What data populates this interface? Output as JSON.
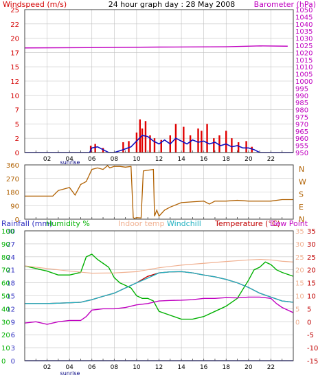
{
  "title": "24 hour graph day : 28 May 2008",
  "colors": {
    "wind": "#d40000",
    "gust": "#e00000",
    "windavg": "#1010c0",
    "baro": "#c000c0",
    "dir": "#b06000",
    "humidity": "#00b000",
    "indoor": "#f0b090",
    "windchill": "#20b0c0",
    "temperature": "#c00000",
    "dewpoint": "#c000c0",
    "rainfall": "#3030c0",
    "frame": "#404040",
    "grid": "#c0c0c0"
  },
  "chart_data": [
    {
      "type": "bar",
      "title": "24 hour graph day : 28 May 2008",
      "left_axis_label": "Windspeed (m/s)",
      "right_axis_label": "Barometer (hPa)",
      "y_left_ticks": [
        "0",
        "2",
        "5",
        "7",
        "10",
        "12",
        "15",
        "17",
        "20",
        "22",
        "25"
      ],
      "y_left_range": [
        0,
        25
      ],
      "y_right_ticks": [
        "950",
        "955",
        "960",
        "965",
        "970",
        "975",
        "980",
        "985",
        "990",
        "995",
        "1000",
        "1005",
        "1010",
        "1015",
        "1020",
        "1025",
        "1030",
        "1035",
        "1040",
        "1045",
        "1050"
      ],
      "y_right_range": [
        950,
        1050
      ],
      "x_ticks": [
        "02",
        "04",
        "06",
        "08",
        "10",
        "12",
        "14",
        "16",
        "18",
        "20",
        "22"
      ],
      "x_annotation": "sunrise",
      "x_range": [
        0,
        24
      ],
      "series": [
        {
          "name": "Barometer",
          "x": [
            0,
            6,
            12,
            18,
            21,
            23.5
          ],
          "values": [
            1023.2,
            1023.4,
            1023.8,
            1024.0,
            1024.6,
            1024.4
          ]
        },
        {
          "name": "Wind gust",
          "x": [
            5.9,
            6.3,
            7.0,
            8.8,
            9.3,
            10.0,
            10.3,
            10.5,
            10.8,
            11.2,
            11.6,
            12.2,
            13.0,
            13.5,
            14.2,
            14.8,
            15.5,
            15.8,
            16.3,
            16.9,
            17.4,
            18.0,
            18.5,
            19.1,
            19.8,
            20.3
          ],
          "values": [
            1.2,
            1.5,
            0.8,
            1.8,
            2.0,
            3.5,
            5.8,
            4.2,
            5.5,
            3.0,
            2.5,
            2.2,
            3.0,
            5.0,
            4.5,
            3.0,
            4.2,
            3.8,
            5.0,
            2.5,
            3.0,
            3.8,
            2.5,
            1.8,
            2.0,
            1.0
          ]
        },
        {
          "name": "Wind average",
          "x": [
            0,
            5.8,
            6.0,
            6.5,
            7.0,
            7.5,
            8.0,
            8.8,
            9.5,
            10.0,
            10.5,
            11.0,
            11.5,
            12.0,
            12.5,
            13.0,
            13.5,
            14.0,
            14.5,
            15.0,
            15.5,
            16.0,
            16.5,
            17.0,
            17.5,
            18.0,
            18.5,
            19.0,
            19.5,
            20.0,
            20.5,
            21.0,
            24.0
          ],
          "values": [
            0,
            0,
            0.8,
            1.0,
            0.5,
            0,
            0,
            0.5,
            1.0,
            2.0,
            3.0,
            2.8,
            2.0,
            1.5,
            2.2,
            1.5,
            2.5,
            2.0,
            1.5,
            2.2,
            1.8,
            2.0,
            1.5,
            1.8,
            1.2,
            1.5,
            1.0,
            1.2,
            0.8,
            0.8,
            0.5,
            0,
            0
          ]
        }
      ]
    },
    {
      "type": "line",
      "y_left_ticks": [
        "0",
        "90",
        "180",
        "270",
        "360"
      ],
      "y_left_range": [
        0,
        360
      ],
      "y_right_ticks": [
        "N",
        "W",
        "S",
        "E",
        "N"
      ],
      "x_range": [
        0,
        24
      ],
      "series": [
        {
          "name": "Wind direction",
          "x": [
            0,
            2.5,
            3.0,
            3.5,
            4.0,
            4.5,
            5.0,
            5.5,
            6.0,
            6.5,
            7.0,
            7.4,
            7.6,
            8.0,
            8.5,
            9.0,
            9.5,
            9.7,
            9.8,
            10.0,
            10.4,
            10.6,
            11.5,
            11.6,
            11.8,
            12.0,
            12.5,
            13.0,
            14.0,
            15.0,
            16.0,
            16.5,
            17.0,
            18.0,
            19.0,
            20.0,
            21.0,
            22.0,
            23.0,
            24.0
          ],
          "values": [
            153,
            153,
            190,
            200,
            210,
            160,
            230,
            250,
            330,
            340,
            330,
            355,
            340,
            350,
            350,
            345,
            350,
            10,
            5,
            10,
            8,
            320,
            330,
            20,
            60,
            20,
            60,
            80,
            110,
            115,
            120,
            100,
            120,
            120,
            125,
            120,
            120,
            120,
            130,
            130
          ]
        }
      ]
    },
    {
      "type": "line",
      "legend": [
        "Rainfall (mm)",
        "Humidity %",
        "Indoor temp",
        "Windchill",
        "Temperature (°C)",
        "Dew Point"
      ],
      "y_rain_ticks": [
        "0",
        "3",
        "6",
        "9",
        "12",
        "15",
        "18",
        "21",
        "24",
        "27",
        "30"
      ],
      "y_humidity_ticks": [
        "0",
        "10",
        "20",
        "30",
        "40",
        "50",
        "60",
        "70",
        "80",
        "90",
        "100"
      ],
      "y_temp_left_ticks": [
        "0",
        "5",
        "10",
        "15",
        "20",
        "25",
        "30",
        "35"
      ],
      "y_temp_right_ticks": [
        "-15",
        "-10",
        "-5",
        "0",
        "5",
        "10",
        "15",
        "20",
        "25",
        "30",
        "35"
      ],
      "y_temp_range": [
        -15,
        35
      ],
      "x_ticks": [
        "02",
        "04",
        "06",
        "08",
        "10",
        "12",
        "14",
        "16",
        "18",
        "20",
        "22"
      ],
      "x_annotation": "sunrise",
      "x_range": [
        0,
        24
      ],
      "series": [
        {
          "name": "Humidity %",
          "axis": "humidity",
          "x": [
            0,
            1,
            2,
            3,
            4,
            5,
            5.5,
            6,
            6.5,
            7,
            7.5,
            8,
            8.5,
            9,
            9.5,
            10,
            10.5,
            11,
            11.5,
            12,
            13,
            14,
            15,
            16,
            17,
            18,
            19,
            20,
            20.5,
            21,
            21.5,
            22,
            22.5,
            23,
            24
          ],
          "values": [
            73,
            71,
            69,
            66,
            66,
            68,
            80,
            82,
            78,
            75,
            72,
            64,
            60,
            58,
            56,
            50,
            48,
            48,
            46,
            38,
            35,
            32,
            32,
            34,
            38,
            42,
            48,
            62,
            70,
            72,
            76,
            74,
            70,
            68,
            65
          ]
        },
        {
          "name": "Indoor temp",
          "axis": "temp",
          "x": [
            0,
            2,
            4,
            6,
            8,
            10,
            12,
            14,
            16,
            18,
            20,
            21,
            22,
            23,
            24
          ],
          "values": [
            21.5,
            20.5,
            19.5,
            18.7,
            18.8,
            19.3,
            20.8,
            21.8,
            22.5,
            23.2,
            23.8,
            24.0,
            23.8,
            23.3,
            23.0
          ]
        },
        {
          "name": "Temperature (°C)",
          "axis": "temp",
          "x": [
            0,
            2,
            4,
            5,
            6,
            7,
            8,
            9,
            10,
            11,
            12,
            13,
            14,
            15,
            16,
            17,
            18,
            19,
            20,
            21,
            22,
            23,
            24
          ],
          "values": [
            7.0,
            7.0,
            7.3,
            7.5,
            8.5,
            9.8,
            11.0,
            13.0,
            15.0,
            17.5,
            18.8,
            19.2,
            19.3,
            18.8,
            18.0,
            17.3,
            16.3,
            15.0,
            13.2,
            11.0,
            9.5,
            8.0,
            7.5
          ]
        },
        {
          "name": "Windchill",
          "axis": "temp",
          "x": [
            0,
            2,
            4,
            5,
            6,
            7,
            8,
            9,
            10,
            11,
            12,
            13,
            14,
            15,
            16,
            17,
            18,
            19,
            20,
            21,
            22,
            23,
            24
          ],
          "values": [
            7.0,
            7.0,
            7.3,
            7.5,
            8.5,
            9.8,
            11.0,
            13.0,
            15.0,
            16.8,
            18.8,
            19.2,
            19.3,
            18.8,
            18.0,
            17.3,
            16.3,
            15.0,
            13.2,
            11.0,
            9.5,
            8.0,
            7.5
          ]
        },
        {
          "name": "Dew Point",
          "axis": "temp",
          "x": [
            0,
            1,
            2,
            3,
            4,
            5,
            5.5,
            6,
            7,
            8,
            9,
            10,
            11,
            12,
            13,
            14,
            15,
            16,
            17,
            18,
            19,
            20,
            21,
            22,
            22.5,
            23,
            24
          ],
          "values": [
            -0.5,
            0,
            -1,
            0,
            0.5,
            0.5,
            2,
            4.5,
            5,
            5,
            5.5,
            6.5,
            7,
            8,
            8.2,
            8.3,
            8.5,
            9,
            9,
            9.3,
            9.2,
            9.5,
            9.5,
            9.0,
            7.0,
            5.5,
            3.5
          ]
        },
        {
          "name": "Rainfall (mm)",
          "axis": "rain",
          "x": [
            0,
            24
          ],
          "values": [
            0,
            0
          ]
        }
      ]
    }
  ]
}
